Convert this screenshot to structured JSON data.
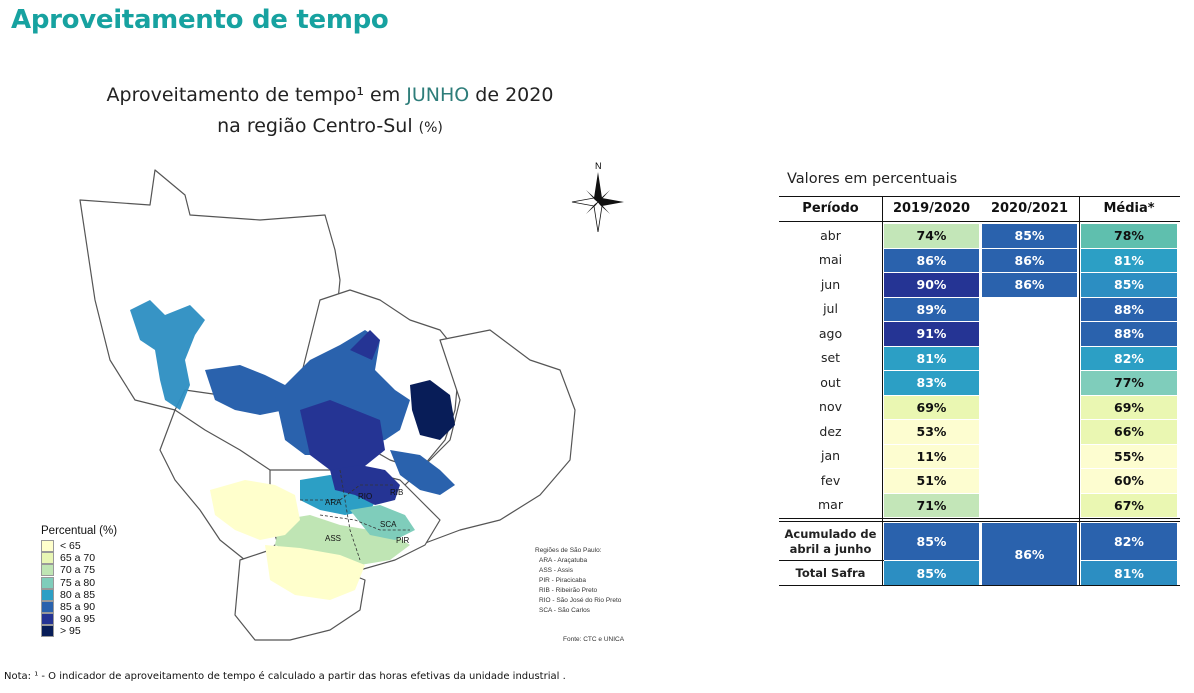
{
  "page_title": "Aproveitamento de tempo",
  "map": {
    "title_line1_a": "Aproveitamento de tempo¹ em ",
    "title_month": "JUNHO",
    "title_line1_b": " de 2020",
    "title_line2": "na região Centro-Sul ",
    "title_unit": "(%)",
    "north_label": "N",
    "legend": {
      "title": "Percentual (%)",
      "items": [
        {
          "label": "< 65",
          "color": "#ffffcc"
        },
        {
          "label": "65 a 70",
          "color": "#e8f6b4"
        },
        {
          "label": "70 a 75",
          "color": "#bfe5b4"
        },
        {
          "label": "75 a 80",
          "color": "#7fcdbb"
        },
        {
          "label": "80 a 85",
          "color": "#2c9fc5"
        },
        {
          "label": "85 a 90",
          "color": "#2a62ad"
        },
        {
          "label": "90 a 95",
          "color": "#253494"
        },
        {
          "label": "> 95",
          "color": "#081d58"
        }
      ]
    },
    "region_codes": [
      "RIO",
      "RIB",
      "ARA",
      "SCA",
      "ASS",
      "PIR"
    ],
    "regions_note": {
      "title": "Regiões de São Paulo:",
      "items": [
        "ARA - Araçatuba",
        "ASS - Assis",
        "PIR - Piracicaba",
        "RIB - Ribeirão Preto",
        "RIO - São José do Rio Preto",
        "SCA - São Carlos"
      ]
    },
    "source": "Fonte: CTC e UNICA"
  },
  "table": {
    "caption": "Valores em percentuais",
    "headers": [
      "Período",
      "2019/2020",
      "2020/2021",
      "Média*"
    ],
    "rows": [
      {
        "label": "abr",
        "v2019": "74%",
        "v2020": "85%",
        "media": "78%",
        "c2019": "#c3e6b8",
        "c2020": "#2a62ad",
        "cm": "#5fbfae"
      },
      {
        "label": "mai",
        "v2019": "86%",
        "v2020": "86%",
        "media": "81%",
        "c2019": "#2a62ad",
        "c2020": "#2a62ad",
        "cm": "#2c9fc5"
      },
      {
        "label": "jun",
        "v2019": "90%",
        "v2020": "86%",
        "media": "85%",
        "c2019": "#253494",
        "c2020": "#2a62ad",
        "cm": "#2c8ec2"
      },
      {
        "label": "jul",
        "v2019": "89%",
        "v2020": "",
        "media": "88%",
        "c2019": "#2a62ad",
        "c2020": "",
        "cm": "#2a62ad"
      },
      {
        "label": "ago",
        "v2019": "91%",
        "v2020": "",
        "media": "88%",
        "c2019": "#253494",
        "c2020": "",
        "cm": "#2a62ad"
      },
      {
        "label": "set",
        "v2019": "81%",
        "v2020": "",
        "media": "82%",
        "c2019": "#2c9fc5",
        "c2020": "",
        "cm": "#2c9fc5"
      },
      {
        "label": "out",
        "v2019": "83%",
        "v2020": "",
        "media": "77%",
        "c2019": "#2c9fc5",
        "c2020": "",
        "cm": "#7fcdbb"
      },
      {
        "label": "nov",
        "v2019": "69%",
        "v2020": "",
        "media": "69%",
        "c2019": "#eaf7b2",
        "c2020": "",
        "cm": "#eaf7b2"
      },
      {
        "label": "dez",
        "v2019": "53%",
        "v2020": "",
        "media": "66%",
        "c2019": "#fdfdd0",
        "c2020": "",
        "cm": "#eaf7b2"
      },
      {
        "label": "jan",
        "v2019": "11%",
        "v2020": "",
        "media": "55%",
        "c2019": "#fdfdd0",
        "c2020": "",
        "cm": "#fdfdd0"
      },
      {
        "label": "fev",
        "v2019": "51%",
        "v2020": "",
        "media": "60%",
        "c2019": "#fdfdd0",
        "c2020": "",
        "cm": "#fdfdd0"
      },
      {
        "label": "mar",
        "v2019": "71%",
        "v2020": "",
        "media": "67%",
        "c2019": "#c3e6b8",
        "c2020": "",
        "cm": "#eaf7b2"
      }
    ],
    "acumulado": {
      "label_line1": "Acumulado de",
      "label_line2": "abril a junho",
      "v2019": "85%",
      "media": "82%"
    },
    "total_safra": {
      "label": "Total Safra",
      "v2019": "85%",
      "media": "81%"
    },
    "merged_2020": "86%"
  },
  "footnote": "Nota: ¹ - O indicador de aproveitamento de tempo é calculado a partir das horas efetivas da unidade industrial ."
}
